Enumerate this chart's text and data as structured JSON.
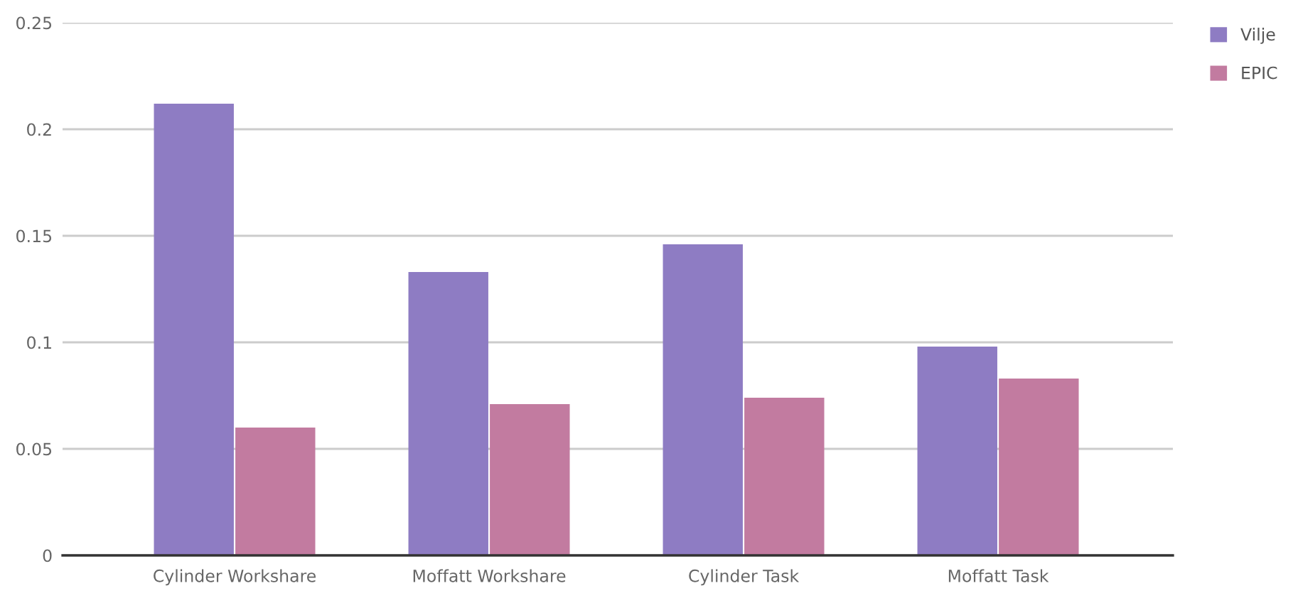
{
  "chart_data": {
    "type": "bar",
    "categories": [
      "Cylinder Workshare",
      "Moffatt Workshare",
      "Cylinder Task",
      "Moffatt Task"
    ],
    "series": [
      {
        "name": "Vilje",
        "color": "#8e7cc3",
        "values": [
          0.212,
          0.133,
          0.146,
          0.098
        ]
      },
      {
        "name": "EPIC",
        "color": "#c27ba0",
        "values": [
          0.06,
          0.071,
          0.074,
          0.083
        ]
      }
    ],
    "ylim": [
      0,
      0.25
    ],
    "yticks": [
      0,
      0.05,
      0.1,
      0.15,
      0.2,
      0.25
    ],
    "grid": "y",
    "legend": "top right"
  }
}
